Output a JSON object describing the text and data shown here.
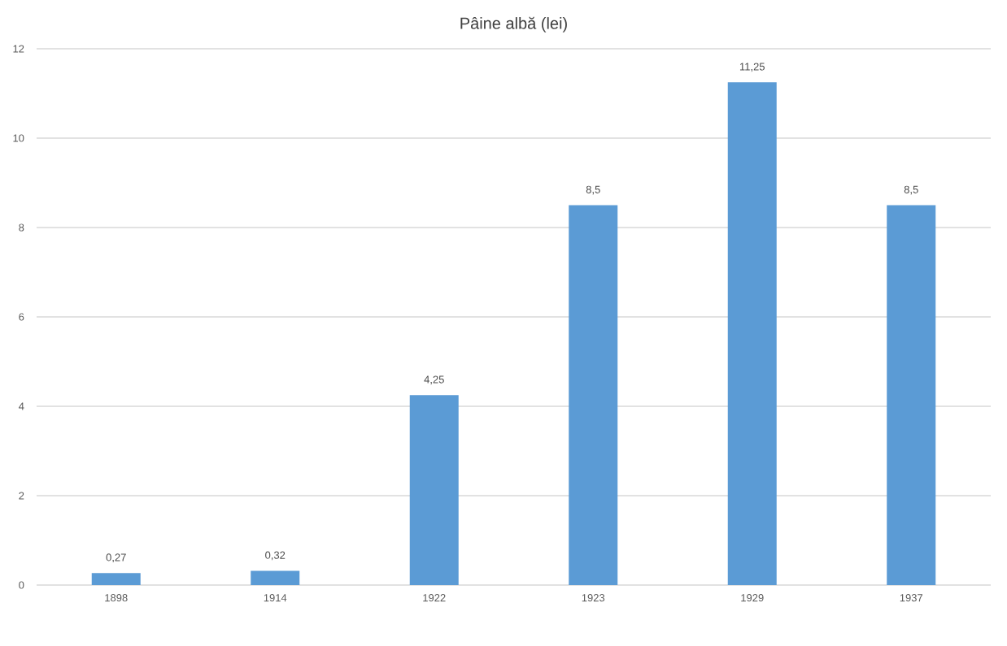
{
  "chart_data": {
    "type": "bar",
    "title": "Pâine albă (lei)",
    "categories": [
      "1898",
      "1914",
      "1922",
      "1923",
      "1929",
      "1937"
    ],
    "values": [
      0.27,
      0.32,
      4.25,
      8.5,
      11.25,
      8.5
    ],
    "value_labels": [
      "0,27",
      "0,32",
      "4,25",
      "8,5",
      "11,25",
      "8,5"
    ],
    "color": "#5b9bd5",
    "ylim": [
      0,
      12
    ],
    "yticks": [
      0,
      2,
      4,
      6,
      8,
      10,
      12
    ],
    "grid": "y"
  }
}
